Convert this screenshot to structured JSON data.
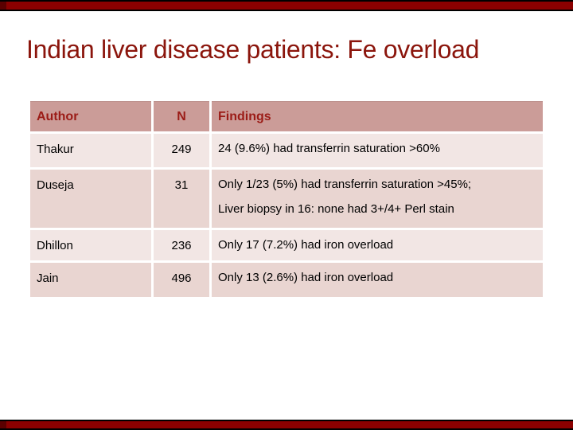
{
  "slide": {
    "title": "Indian liver disease patients: Fe overload"
  },
  "table": {
    "headers": {
      "author": "Author",
      "n": "N",
      "findings": "Findings"
    },
    "rows": [
      {
        "author": "Thakur",
        "n": "249",
        "findings": [
          "24 (9.6%) had transferrin saturation >60%"
        ]
      },
      {
        "author": "Duseja",
        "n": "31",
        "findings": [
          "Only 1/23 (5%) had transferrin saturation >45%;",
          "Liver biopsy in 16: none had 3+/4+ Perl stain"
        ]
      },
      {
        "author": "Dhillon",
        "n": "236",
        "findings": [
          "Only 17 (7.2%) had iron overload"
        ]
      },
      {
        "author": "Jain",
        "n": "496",
        "findings": [
          "Only 13 (2.6%) had iron overload"
        ]
      }
    ]
  },
  "colors": {
    "accent_bar": "#8b0000",
    "bar_border": "#000000",
    "title_text": "#8b150c",
    "header_bg": "#cb9c98",
    "header_text": "#9b1b16",
    "row_light": "#f2e6e4",
    "row_dark": "#e9d5d1",
    "body_text": "#000000",
    "separator": "#ffffff"
  }
}
